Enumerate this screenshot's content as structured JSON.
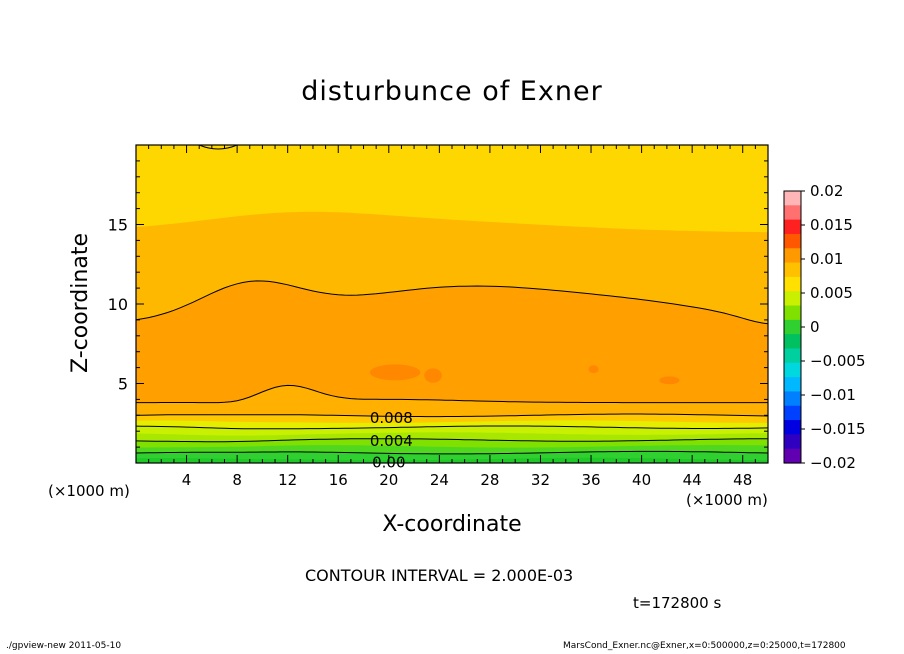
{
  "chart_data": {
    "type": "contour",
    "title": "disturbunce of Exner",
    "xlabel": "X-coordinate",
    "ylabel": "Z-coordinate",
    "x_unit": "(×1000 m)",
    "y_unit": "(×1000 m)",
    "xlim": [
      0,
      50
    ],
    "ylim": [
      0,
      20
    ],
    "x_ticks": [
      4,
      8,
      12,
      16,
      20,
      24,
      28,
      32,
      36,
      40,
      44,
      48
    ],
    "y_ticks": [
      5,
      10,
      15
    ],
    "colorbar": {
      "labels": [
        "0.02",
        "0.015",
        "0.01",
        "0.005",
        "0",
        "−0.005",
        "−0.01",
        "−0.015",
        "−0.02"
      ],
      "values": [
        0.02,
        0.015,
        0.01,
        0.005,
        0,
        -0.005,
        -0.01,
        -0.015,
        -0.02
      ],
      "colors": [
        "#ffb6b6",
        "#ff7070",
        "#ff2020",
        "#ff5800",
        "#ff9900",
        "#ffc000",
        "#ffe000",
        "#c8f000",
        "#80e000",
        "#30d030",
        "#00c060",
        "#00d0a0",
        "#00d8e0",
        "#00b8ff",
        "#0080ff",
        "#0040ff",
        "#0000e0",
        "#3000c0",
        "#6000b0"
      ]
    },
    "contour_labels": [
      {
        "value": "0.008",
        "x": 20.2,
        "y": 2.9
      },
      {
        "value": "0.004",
        "x": 20.2,
        "y": 1.45
      },
      {
        "value": "0.00",
        "x": 20.0,
        "y": 0.1
      }
    ],
    "fill_bands": [
      {
        "level": "0.006–0.008",
        "color": "#ffd700",
        "description": "upper region"
      },
      {
        "level": "0.008–0.010",
        "color": "#ffa600",
        "description": "mid region"
      },
      {
        "level": "0.010–0.012",
        "color": "#ff9000",
        "description": "core"
      }
    ]
  },
  "contour_interval": "CONTOUR INTERVAL = 2.000E-03",
  "time_label": "t=172800 s",
  "footer_left": "./gpview-new   2011-05-10",
  "footer_right": "MarsCond_Exner.nc@Exner,x=0:500000,z=0:25000,t=172800"
}
